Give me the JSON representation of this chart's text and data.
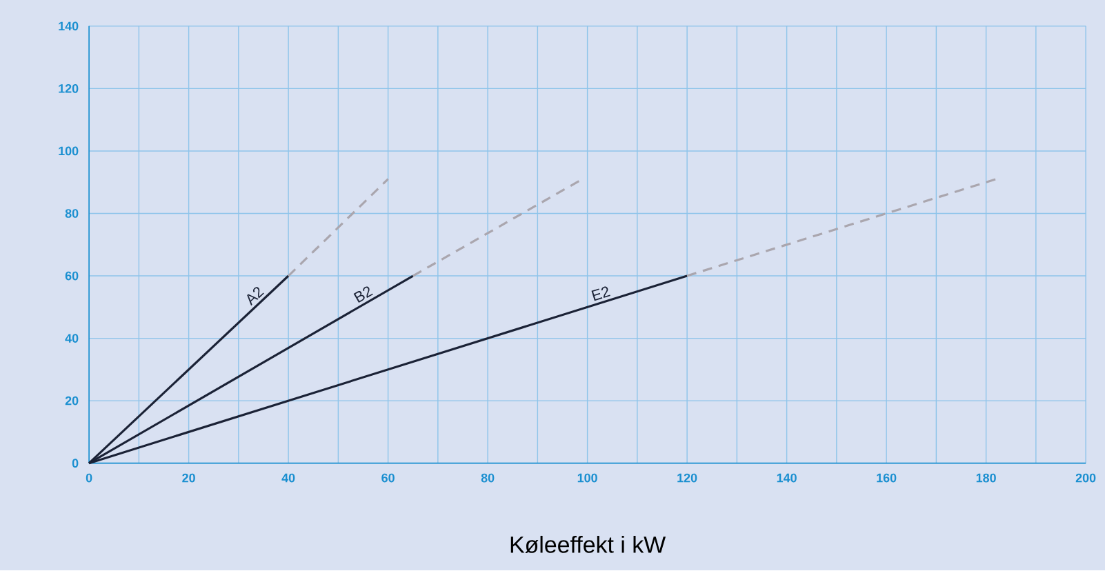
{
  "chart_data": {
    "type": "line",
    "xlabel": "Køleeffekt i kW",
    "xlim": [
      0,
      200
    ],
    "ylim": [
      0,
      140
    ],
    "xticks": [
      0,
      {
        "value": 10,
        "label": null
      },
      20,
      {
        "value": 30,
        "label": null
      },
      40,
      {
        "value": 50,
        "label": null
      },
      60,
      {
        "value": 70,
        "label": null
      },
      80,
      {
        "value": 90,
        "label": null
      },
      100,
      {
        "value": 110,
        "label": null
      },
      120,
      {
        "value": 130,
        "label": null
      },
      140,
      {
        "value": 150,
        "label": null
      },
      160,
      {
        "value": 170,
        "label": null
      },
      180,
      {
        "value": 190,
        "label": null
      },
      200
    ],
    "yticks": [
      0,
      20,
      40,
      60,
      80,
      100,
      120,
      140
    ],
    "grid": true,
    "line_style": "solid",
    "series": [
      {
        "name": "A2",
        "color": "#1b2236",
        "x": [
          0,
          40
        ],
        "values": [
          0,
          60
        ]
      },
      {
        "name": "B2",
        "color": "#1b2236",
        "x": [
          0,
          65
        ],
        "values": [
          0,
          60
        ]
      },
      {
        "name": "E2",
        "color": "#1b2236",
        "x": [
          0,
          120
        ],
        "values": [
          0,
          60
        ]
      },
      {
        "color": "#aaa6ae",
        "line_style": "dashed",
        "x": [
          40,
          60
        ],
        "values": [
          60,
          91
        ]
      },
      {
        "color": "#aaa6ae",
        "line_style": "dashed",
        "x": [
          65,
          99
        ],
        "values": [
          60,
          91
        ]
      },
      {
        "color": "#aaa6ae",
        "line_style": "dashed",
        "x": [
          120,
          182
        ],
        "values": [
          60,
          91
        ]
      }
    ]
  }
}
